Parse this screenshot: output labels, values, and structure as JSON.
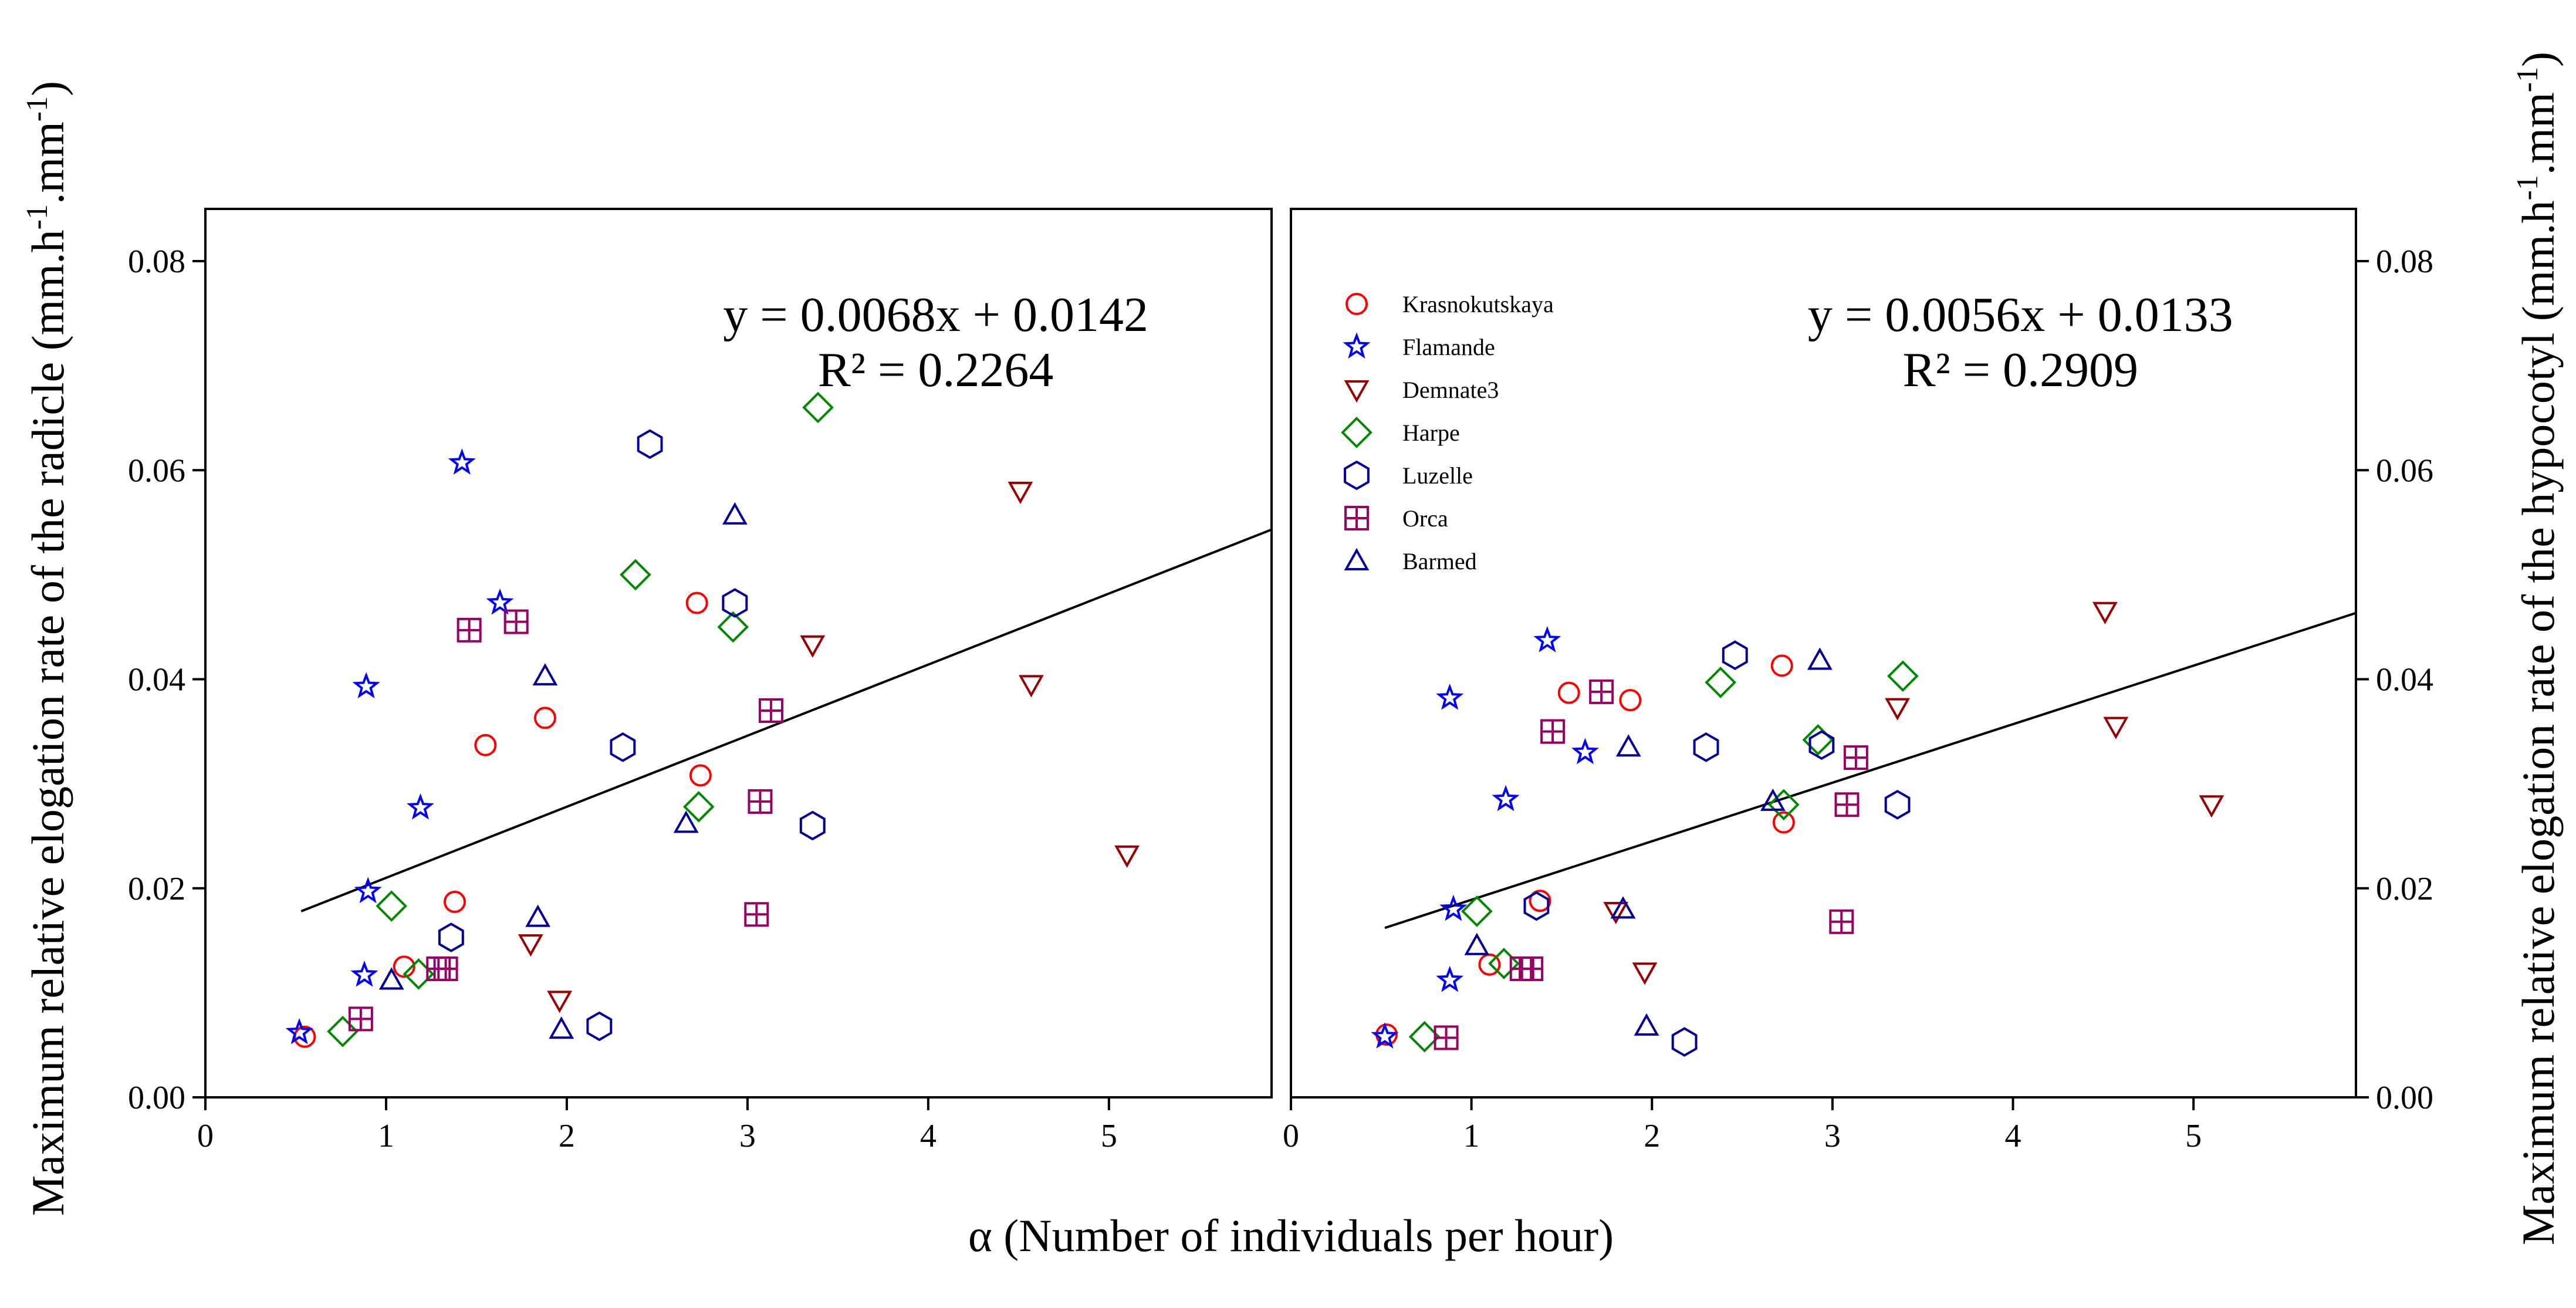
{
  "chart_data": {
    "type": "scatter",
    "xlabel": "α (Number of individuals per hour)",
    "legend": {
      "placement": "top-left of right panel",
      "entries": [
        {
          "name": "Krasnokutskaya",
          "marker": "circle",
          "color": "#ff0000"
        },
        {
          "name": "Flamande",
          "marker": "star",
          "color": "#0000ff"
        },
        {
          "name": "Demnate3",
          "marker": "triangle-down",
          "color": "#990000"
        },
        {
          "name": "Harpe",
          "marker": "diamond",
          "color": "#008800"
        },
        {
          "name": "Luzelle",
          "marker": "hexagon",
          "color": "#000099"
        },
        {
          "name": "Orca",
          "marker": "square-cross",
          "color": "#990066"
        },
        {
          "name": "Barmed",
          "marker": "triangle-up",
          "color": "#000099"
        }
      ]
    },
    "panels": [
      {
        "id": "radicle",
        "ylabel": "Maximum relative elogation rate of the radicle (mm.h-1.mm-1)",
        "ylabel_parts": {
          "pre": "Maximum relative elogation rate of the radicle (mm.h",
          "sup1": "-1",
          "mid": ".mm",
          "sup2": "-1",
          "post": ")"
        },
        "xlim": [
          0,
          5.9
        ],
        "ylim": [
          0,
          0.085
        ],
        "xticks": [
          0,
          1,
          2,
          3,
          4,
          5
        ],
        "yticks": [
          "0.00",
          "0.02",
          "0.04",
          "0.06",
          "0.08"
        ],
        "equation": "y = 0.0068x + 0.0142",
        "r2": "R² = 0.2264",
        "trendline": {
          "slope": 0.0068,
          "intercept": 0.0142,
          "x_start": 0.53,
          "x_end": 5.9
        },
        "series": [
          {
            "name": "Krasnokutskaya",
            "points": [
              [
                0.55,
                0.0058
              ],
              [
                1.1,
                0.0125
              ],
              [
                1.38,
                0.0187
              ],
              [
                1.55,
                0.0337
              ],
              [
                1.88,
                0.0363
              ],
              [
                2.72,
                0.0473
              ],
              [
                2.74,
                0.0308
              ]
            ]
          },
          {
            "name": "Flamande",
            "points": [
              [
                0.52,
                0.0062
              ],
              [
                0.88,
                0.0117
              ],
              [
                0.9,
                0.0197
              ],
              [
                0.89,
                0.0393
              ],
              [
                1.19,
                0.0277
              ],
              [
                1.42,
                0.0607
              ],
              [
                1.63,
                0.0473
              ]
            ]
          },
          {
            "name": "Demnate3",
            "points": [
              [
                1.8,
                0.0147
              ],
              [
                1.96,
                0.0093
              ],
              [
                3.36,
                0.0433
              ],
              [
                4.51,
                0.058
              ],
              [
                4.57,
                0.0395
              ],
              [
                5.1,
                0.0232
              ]
            ]
          },
          {
            "name": "Harpe",
            "points": [
              [
                0.76,
                0.0063
              ],
              [
                1.03,
                0.0183
              ],
              [
                1.18,
                0.0118
              ],
              [
                2.38,
                0.05
              ],
              [
                2.73,
                0.0278
              ],
              [
                2.92,
                0.045
              ],
              [
                3.39,
                0.066
              ]
            ]
          },
          {
            "name": "Luzelle",
            "points": [
              [
                1.36,
                0.0153
              ],
              [
                2.18,
                0.0068
              ],
              [
                2.31,
                0.0335
              ],
              [
                2.46,
                0.0625
              ],
              [
                2.93,
                0.0473
              ],
              [
                3.36,
                0.026
              ]
            ]
          },
          {
            "name": "Orca",
            "points": [
              [
                0.86,
                0.0075
              ],
              [
                1.29,
                0.0123
              ],
              [
                1.33,
                0.0123
              ],
              [
                1.46,
                0.0447
              ],
              [
                1.72,
                0.0455
              ],
              [
                3.05,
                0.0175
              ],
              [
                3.07,
                0.0283
              ],
              [
                3.13,
                0.037
              ]
            ]
          },
          {
            "name": "Barmed",
            "points": [
              [
                1.03,
                0.0112
              ],
              [
                1.84,
                0.0172
              ],
              [
                1.88,
                0.0403
              ],
              [
                1.97,
                0.0065
              ],
              [
                2.66,
                0.0262
              ],
              [
                2.93,
                0.0557
              ]
            ]
          }
        ]
      },
      {
        "id": "hypocotyl",
        "ylabel": "Maximum relative elogation rate of the hypocotyl (mm.h-1.mm-1)",
        "ylabel_parts": {
          "pre": "Maximum relative elogation rate of the hypocotyl (mm.h",
          "sup1": "-1",
          "mid": ".mm",
          "sup2": "-1",
          "post": ")"
        },
        "xlim": [
          0,
          5.9
        ],
        "ylim": [
          0,
          0.085
        ],
        "xticks": [
          0,
          1,
          2,
          3,
          4,
          5
        ],
        "yticks": [
          "0.00",
          "0.02",
          "0.04",
          "0.06",
          "0.08"
        ],
        "equation": "y = 0.0056x + 0.0133",
        "r2": "R² = 0.2909",
        "trendline": {
          "slope": 0.0056,
          "intercept": 0.0133,
          "x_start": 0.52,
          "x_end": 5.9
        },
        "series": [
          {
            "name": "Krasnokutskaya",
            "points": [
              [
                0.53,
                0.006
              ],
              [
                1.1,
                0.0127
              ],
              [
                1.38,
                0.0188
              ],
              [
                1.54,
                0.0387
              ],
              [
                1.88,
                0.038
              ],
              [
                2.72,
                0.0413
              ],
              [
                2.73,
                0.0263
              ]
            ]
          },
          {
            "name": "Flamande",
            "points": [
              [
                0.52,
                0.0058
              ],
              [
                0.88,
                0.0112
              ],
              [
                0.9,
                0.018
              ],
              [
                0.88,
                0.0382
              ],
              [
                1.19,
                0.0285
              ],
              [
                1.42,
                0.0437
              ],
              [
                1.63,
                0.033
              ]
            ]
          },
          {
            "name": "Demnate3",
            "points": [
              [
                1.8,
                0.0178
              ],
              [
                1.96,
                0.012
              ],
              [
                3.36,
                0.0373
              ],
              [
                4.51,
                0.0465
              ],
              [
                4.57,
                0.0355
              ],
              [
                5.1,
                0.028
              ]
            ]
          },
          {
            "name": "Harpe",
            "points": [
              [
                0.74,
                0.0058
              ],
              [
                1.03,
                0.0178
              ],
              [
                1.18,
                0.0128
              ],
              [
                2.38,
                0.0397
              ],
              [
                2.73,
                0.028
              ],
              [
                2.92,
                0.0342
              ],
              [
                3.39,
                0.0403
              ]
            ]
          },
          {
            "name": "Luzelle",
            "points": [
              [
                1.36,
                0.0183
              ],
              [
                2.18,
                0.0053
              ],
              [
                2.3,
                0.0335
              ],
              [
                2.46,
                0.0423
              ],
              [
                2.94,
                0.0337
              ],
              [
                3.36,
                0.028
              ]
            ]
          },
          {
            "name": "Orca",
            "points": [
              [
                0.86,
                0.0057
              ],
              [
                1.28,
                0.0123
              ],
              [
                1.33,
                0.0123
              ],
              [
                1.45,
                0.035
              ],
              [
                1.72,
                0.0388
              ],
              [
                3.05,
                0.0168
              ],
              [
                3.08,
                0.028
              ],
              [
                3.13,
                0.0325
              ]
            ]
          },
          {
            "name": "Barmed",
            "points": [
              [
                1.03,
                0.0145
              ],
              [
                1.84,
                0.018
              ],
              [
                1.87,
                0.0335
              ],
              [
                1.97,
                0.0068
              ],
              [
                2.67,
                0.0283
              ],
              [
                2.93,
                0.0418
              ]
            ]
          }
        ]
      }
    ]
  }
}
